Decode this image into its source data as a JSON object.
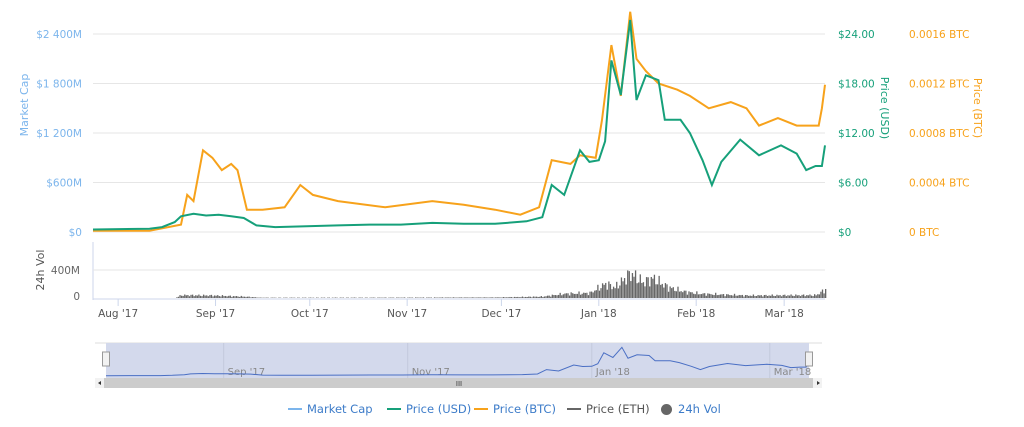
{
  "chart_data": {
    "type": "line",
    "x_unit": "days since 1 Aug 2017",
    "x_range": [
      -8,
      225
    ],
    "x_ticks": [
      {
        "label": "Aug '17",
        "day": 0
      },
      {
        "label": "Sep '17",
        "day": 31
      },
      {
        "label": "Oct '17",
        "day": 61
      },
      {
        "label": "Nov '17",
        "day": 92
      },
      {
        "label": "Dec '17",
        "day": 122
      },
      {
        "label": "Jan '18",
        "day": 153
      },
      {
        "label": "Feb '18",
        "day": 184
      },
      {
        "label": "Mar '18",
        "day": 212
      }
    ],
    "axes": {
      "market_cap": {
        "title": "Market Cap",
        "ticks": [
          "$0",
          "$600M",
          "$1 200M",
          "$1 800M",
          "$2 400M"
        ],
        "range": [
          0,
          2400
        ]
      },
      "price_usd": {
        "title": "Price (USD)",
        "ticks": [
          "$0",
          "$6.00",
          "$12.00",
          "$18.00",
          "$24.00"
        ],
        "range": [
          0,
          24
        ]
      },
      "price_btc": {
        "title": "Price (BTC)",
        "ticks": [
          "0 BTC",
          "0.0004 BTC",
          "0.0008 BTC",
          "0.0012 BTC",
          "0.0016 BTC"
        ],
        "range": [
          0,
          0.0016
        ]
      },
      "volume": {
        "title": "24h Vol",
        "ticks": [
          "0",
          "400M"
        ],
        "range": [
          0,
          400
        ]
      }
    },
    "series": [
      {
        "name": "Price (USD)",
        "color": "#16a07a",
        "points": [
          [
            -8,
            0.3
          ],
          [
            10,
            0.4
          ],
          [
            14,
            0.6
          ],
          [
            18,
            1.2
          ],
          [
            20,
            1.9
          ],
          [
            24,
            2.2
          ],
          [
            28,
            2.0
          ],
          [
            32,
            2.1
          ],
          [
            36,
            1.9
          ],
          [
            40,
            1.7
          ],
          [
            44,
            0.8
          ],
          [
            50,
            0.6
          ],
          [
            60,
            0.7
          ],
          [
            70,
            0.8
          ],
          [
            80,
            0.9
          ],
          [
            90,
            0.9
          ],
          [
            100,
            1.1
          ],
          [
            110,
            1.0
          ],
          [
            120,
            1.0
          ],
          [
            130,
            1.3
          ],
          [
            135,
            1.8
          ],
          [
            138,
            5.7
          ],
          [
            142,
            4.5
          ],
          [
            147,
            9.9
          ],
          [
            150,
            8.5
          ],
          [
            153,
            8.7
          ],
          [
            155,
            11
          ],
          [
            157,
            20.8
          ],
          [
            159,
            18
          ],
          [
            160,
            16.6
          ],
          [
            163,
            25.7
          ],
          [
            165,
            16
          ],
          [
            168,
            19
          ],
          [
            172,
            18.4
          ],
          [
            174,
            13.6
          ],
          [
            179,
            13.6
          ],
          [
            182,
            12
          ],
          [
            186,
            8.7
          ],
          [
            189,
            5.7
          ],
          [
            192,
            8.5
          ],
          [
            198,
            11.2
          ],
          [
            204,
            9.3
          ],
          [
            211,
            10.5
          ],
          [
            216,
            9.5
          ],
          [
            219,
            7.5
          ],
          [
            222,
            8
          ],
          [
            224,
            8
          ],
          [
            225,
            10.5
          ]
        ]
      },
      {
        "name": "Price (BTC)",
        "color": "#f7a21b",
        "points": [
          [
            -8,
            1e-05
          ],
          [
            10,
            1e-05
          ],
          [
            20,
            6e-05
          ],
          [
            22,
            0.0003
          ],
          [
            24,
            0.00025
          ],
          [
            27,
            0.00066
          ],
          [
            30,
            0.0006
          ],
          [
            33,
            0.0005
          ],
          [
            36,
            0.00055
          ],
          [
            38,
            0.0005
          ],
          [
            41,
            0.00018
          ],
          [
            46,
            0.00018
          ],
          [
            53,
            0.0002
          ],
          [
            58,
            0.00038
          ],
          [
            62,
            0.0003
          ],
          [
            70,
            0.00025
          ],
          [
            85,
            0.0002
          ],
          [
            100,
            0.00025
          ],
          [
            110,
            0.00022
          ],
          [
            120,
            0.00018
          ],
          [
            128,
            0.00014
          ],
          [
            134,
            0.0002
          ],
          [
            138,
            0.00058
          ],
          [
            144,
            0.00055
          ],
          [
            147,
            0.00062
          ],
          [
            152,
            0.0006
          ],
          [
            154,
            0.0009
          ],
          [
            157,
            0.00151
          ],
          [
            160,
            0.0011
          ],
          [
            163,
            0.00178
          ],
          [
            165,
            0.0014
          ],
          [
            168,
            0.0013
          ],
          [
            172,
            0.0012
          ],
          [
            178,
            0.00115
          ],
          [
            182,
            0.0011
          ],
          [
            188,
            0.001
          ],
          [
            195,
            0.00105
          ],
          [
            200,
            0.001
          ],
          [
            204,
            0.00086
          ],
          [
            210,
            0.00092
          ],
          [
            216,
            0.00086
          ],
          [
            223,
            0.00086
          ],
          [
            224,
            0.001
          ],
          [
            225,
            0.00119
          ]
        ]
      },
      {
        "name": "24h Vol",
        "color": "#666666",
        "points": [
          [
            -8,
            0
          ],
          [
            18,
            0
          ],
          [
            20,
            40
          ],
          [
            30,
            35
          ],
          [
            40,
            20
          ],
          [
            45,
            5
          ],
          [
            60,
            5
          ],
          [
            90,
            6
          ],
          [
            120,
            8
          ],
          [
            135,
            20
          ],
          [
            142,
            60
          ],
          [
            150,
            70
          ],
          [
            155,
            200
          ],
          [
            158,
            150
          ],
          [
            163,
            350
          ],
          [
            167,
            220
          ],
          [
            170,
            280
          ],
          [
            175,
            150
          ],
          [
            180,
            90
          ],
          [
            185,
            60
          ],
          [
            200,
            35
          ],
          [
            222,
            40
          ],
          [
            225,
            120
          ]
        ]
      }
    ]
  },
  "navigator": {
    "labels": [
      "Sep '17",
      "Nov '17",
      "Jan '18",
      "Mar '18"
    ]
  },
  "legend": [
    {
      "label": "Market Cap",
      "color": "#7cb5ec"
    },
    {
      "label": "Price (USD)",
      "color": "#16a07a"
    },
    {
      "label": "Price (BTC)",
      "color": "#f7a21b"
    },
    {
      "label": "Price (ETH)",
      "color": "#666666"
    },
    {
      "label": "24h Vol",
      "color": "#666666"
    }
  ]
}
